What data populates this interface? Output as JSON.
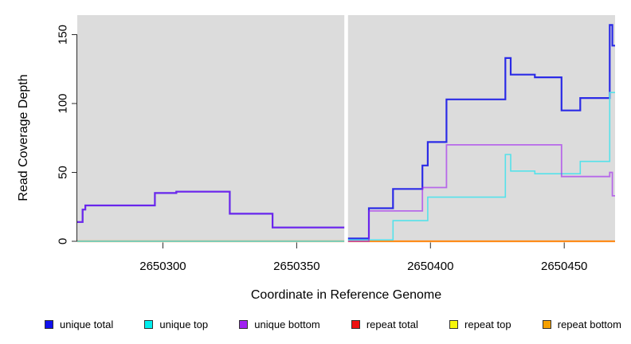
{
  "page": {
    "background": "#FFFFFF"
  },
  "chart_data": {
    "type": "line",
    "subtype": "step-coverage-plot",
    "title": "",
    "xlabel": "Coordinate in Reference Genome",
    "ylabel": "Read Coverage Depth",
    "xlim": [
      2650268,
      2650469
    ],
    "ylim": [
      0,
      160
    ],
    "grid": false,
    "legend_position": "bottom",
    "plot_bg": "#DCDCDC",
    "axis_color": "#2B2B2B",
    "x_ticks": [
      {
        "v": 2650300,
        "label": "2650300"
      },
      {
        "v": 2650350,
        "label": "2650350"
      },
      {
        "v": 2650400,
        "label": "2650400"
      },
      {
        "v": 2650450,
        "label": "2650450"
      }
    ],
    "y_ticks": [
      {
        "v": 0,
        "label": "0"
      },
      {
        "v": 50,
        "label": "50"
      },
      {
        "v": 100,
        "label": "100"
      },
      {
        "v": 150,
        "label": "150"
      }
    ],
    "gap": {
      "from": 2650368,
      "to": 2650369,
      "note": "white band of missing data"
    },
    "baseline_overlay": {
      "label": "zero-coverage overlap line (left of gap)",
      "color": "#90D28E",
      "width": 1.3,
      "from": 2650268,
      "to": 2650368,
      "value": 0.3
    },
    "series": [
      {
        "name": "unique total",
        "line_color": "#2B2BE6",
        "line_width": 2.2,
        "opacity": 1,
        "z": 4,
        "legend_fill": "#1111EE",
        "legend_border": "#333333",
        "steps": [
          [
            2650268,
            14
          ],
          [
            2650270,
            23
          ],
          [
            2650271,
            26
          ],
          [
            2650297,
            35
          ],
          [
            2650305,
            36
          ],
          [
            2650325,
            20
          ],
          [
            2650341,
            10
          ],
          [
            2650368,
            null
          ],
          [
            2650369,
            2
          ],
          [
            2650377,
            24
          ],
          [
            2650386,
            38
          ],
          [
            2650397,
            55
          ],
          [
            2650399,
            72
          ],
          [
            2650406,
            103
          ],
          [
            2650428,
            133
          ],
          [
            2650430,
            121
          ],
          [
            2650439,
            119
          ],
          [
            2650449,
            95
          ],
          [
            2650456,
            104
          ],
          [
            2650467,
            157
          ],
          [
            2650468,
            142
          ],
          [
            2650469,
            142
          ]
        ]
      },
      {
        "name": "unique top",
        "line_color": "#55E2EA",
        "line_width": 1.6,
        "opacity": 1,
        "z": 5,
        "legend_fill": "#00EEEE",
        "legend_border": "#333333",
        "steps": [
          [
            2650268,
            0
          ],
          [
            2650368,
            null
          ],
          [
            2650369,
            1
          ],
          [
            2650386,
            15
          ],
          [
            2650399,
            32
          ],
          [
            2650428,
            63
          ],
          [
            2650430,
            51
          ],
          [
            2650439,
            49
          ],
          [
            2650456,
            58
          ],
          [
            2650467,
            108
          ],
          [
            2650469,
            108
          ]
        ]
      },
      {
        "name": "unique bottom",
        "line_color": "#A020F0",
        "line_width": 1.8,
        "opacity": 0.62,
        "z": 6,
        "legend_fill": "#A020F0",
        "legend_border": "#333333",
        "steps": [
          [
            2650268,
            14
          ],
          [
            2650270,
            23
          ],
          [
            2650271,
            26
          ],
          [
            2650297,
            35
          ],
          [
            2650305,
            36
          ],
          [
            2650325,
            20
          ],
          [
            2650341,
            10
          ],
          [
            2650368,
            null
          ],
          [
            2650369,
            0
          ],
          [
            2650377,
            22
          ],
          [
            2650397,
            39
          ],
          [
            2650406,
            70
          ],
          [
            2650449,
            47
          ],
          [
            2650467,
            50
          ],
          [
            2650468,
            33
          ],
          [
            2650469,
            33
          ]
        ]
      },
      {
        "name": "repeat total",
        "line_color": "#E34F4F",
        "line_width": 1.2,
        "opacity": 1,
        "z": 2,
        "legend_fill": "#EE1111",
        "legend_border": "#333333",
        "steps": [
          [
            2650268,
            0
          ],
          [
            2650368,
            null
          ],
          [
            2650369,
            1
          ],
          [
            2650377,
            0
          ],
          [
            2650469,
            0
          ]
        ]
      },
      {
        "name": "repeat top",
        "line_color": "#F0F000",
        "line_width": 1,
        "opacity": 1,
        "z": 1,
        "legend_fill": "#F5F50A",
        "legend_border": "#333333",
        "steps": [
          [
            2650268,
            0
          ],
          [
            2650368,
            null
          ],
          [
            2650369,
            0
          ],
          [
            2650469,
            0
          ]
        ]
      },
      {
        "name": "repeat bottom",
        "line_color": "#FF8C1A",
        "line_width": 2.2,
        "opacity": 1,
        "z": 3,
        "legend_fill": "#F5A000",
        "legend_border": "#333333",
        "steps": [
          [
            2650268,
            0
          ],
          [
            2650368,
            null
          ],
          [
            2650369,
            0
          ],
          [
            2650469,
            0
          ]
        ]
      }
    ]
  }
}
